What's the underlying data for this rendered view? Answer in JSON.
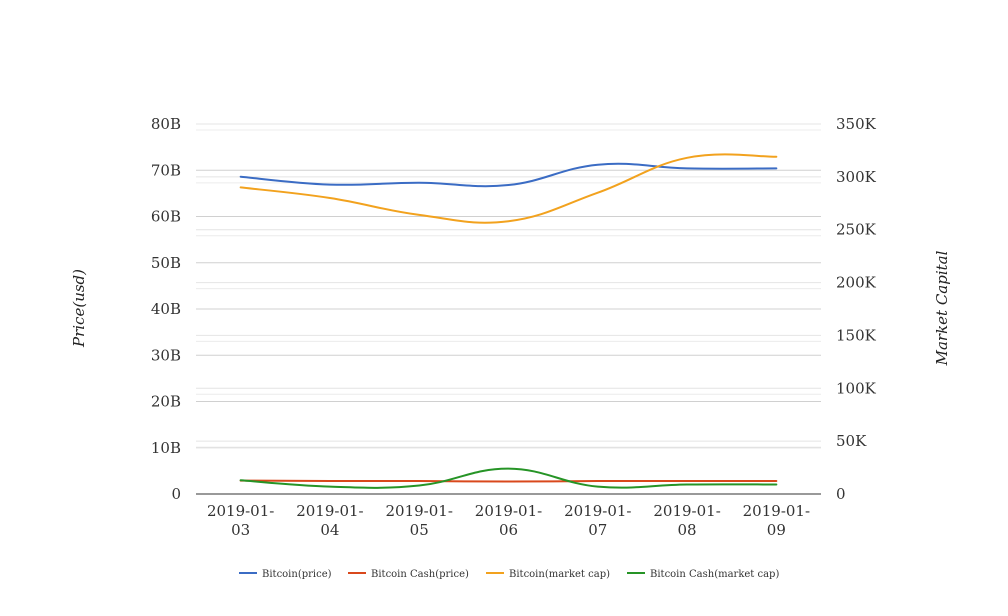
{
  "chart_data": {
    "type": "line",
    "x": [
      "2019-01-03",
      "2019-01-04",
      "2019-01-05",
      "2019-01-06",
      "2019-01-07",
      "2019-01-08",
      "2019-01-09"
    ],
    "x_tick_labels": [
      [
        "2019-01-",
        "03"
      ],
      [
        "2019-01-",
        "04"
      ],
      [
        "2019-01-",
        "05"
      ],
      [
        "2019-01-",
        "06"
      ],
      [
        "2019-01-",
        "07"
      ],
      [
        "2019-01-",
        "08"
      ],
      [
        "2019-01-",
        "09"
      ]
    ],
    "ylabel_left": "Price(usd)",
    "ylabel_right": "Market Capital",
    "ylim_left": [
      0,
      80000000000
    ],
    "ylim_right": [
      0,
      350000
    ],
    "yticks_left": [
      {
        "value": 0,
        "label": "0"
      },
      {
        "value": 10000000000,
        "label": "10B"
      },
      {
        "value": 20000000000,
        "label": "20B"
      },
      {
        "value": 30000000000,
        "label": "30B"
      },
      {
        "value": 40000000000,
        "label": "40B"
      },
      {
        "value": 50000000000,
        "label": "50B"
      },
      {
        "value": 60000000000,
        "label": "60B"
      },
      {
        "value": 70000000000,
        "label": "70B"
      },
      {
        "value": 80000000000,
        "label": "80B"
      }
    ],
    "yticks_right": [
      {
        "value": 0,
        "label": "0"
      },
      {
        "value": 50000,
        "label": "50K"
      },
      {
        "value": 100000,
        "label": "100K"
      },
      {
        "value": 150000,
        "label": "150K"
      },
      {
        "value": 200000,
        "label": "200K"
      },
      {
        "value": 250000,
        "label": "250K"
      },
      {
        "value": 300000,
        "label": "300K"
      },
      {
        "value": 350000,
        "label": "350K"
      }
    ],
    "grid": true,
    "legend_position": "bottom",
    "series": [
      {
        "name": "Bitcoin(price)",
        "color": "#3b6cc4",
        "axis": "left",
        "values": [
          68600000000,
          66900000000,
          67300000000,
          66800000000,
          71200000000,
          70400000000,
          70400000000
        ]
      },
      {
        "name": "Bitcoin Cash(price)",
        "color": "#d9481c",
        "axis": "left",
        "values": [
          2900000000,
          2800000000,
          2800000000,
          2700000000,
          2800000000,
          2800000000,
          2800000000
        ]
      },
      {
        "name": "Bitcoin(market cap)",
        "color": "#f2a21e",
        "axis": "right",
        "values": [
          290000,
          280000,
          264000,
          258000,
          285000,
          318000,
          319000
        ]
      },
      {
        "name": "Bitcoin Cash(market cap)",
        "color": "#269426",
        "axis": "right",
        "values": [
          13000,
          7000,
          8000,
          24000,
          7000,
          9000,
          9000
        ]
      }
    ]
  }
}
